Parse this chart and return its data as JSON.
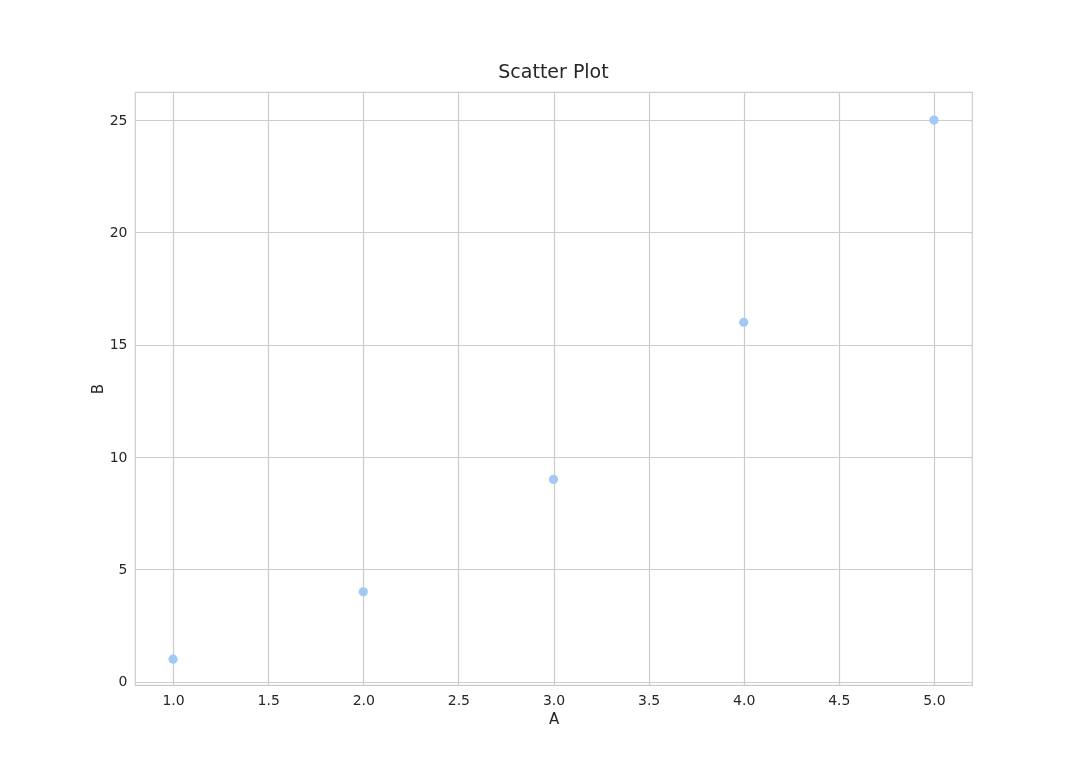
{
  "chart_data": {
    "type": "scatter",
    "title": "Scatter Plot",
    "xlabel": "A",
    "ylabel": "B",
    "x": [
      1,
      2,
      3,
      4,
      5
    ],
    "series": [
      {
        "color": "#a1c9f4",
        "values": [
          1,
          4,
          9,
          16,
          25
        ]
      }
    ],
    "xlim": [
      0.8,
      5.2
    ],
    "xticks": [
      {
        "value": 1,
        "label": "1.0"
      },
      {
        "value": 1.5,
        "label": "1.5"
      },
      {
        "value": 2,
        "label": "2.0"
      },
      {
        "value": 2.5,
        "label": "2.5"
      },
      {
        "value": 3,
        "label": "3.0"
      },
      {
        "value": 3.5,
        "label": "3.5"
      },
      {
        "value": 4,
        "label": "4.0"
      },
      {
        "value": 4.5,
        "label": "4.5"
      },
      {
        "value": 5,
        "label": "5.0"
      }
    ],
    "ylim": [
      -0.15,
      26.25
    ],
    "yticks": [
      0,
      5,
      10,
      15,
      20,
      25
    ],
    "grid": true,
    "marker": "circle"
  }
}
